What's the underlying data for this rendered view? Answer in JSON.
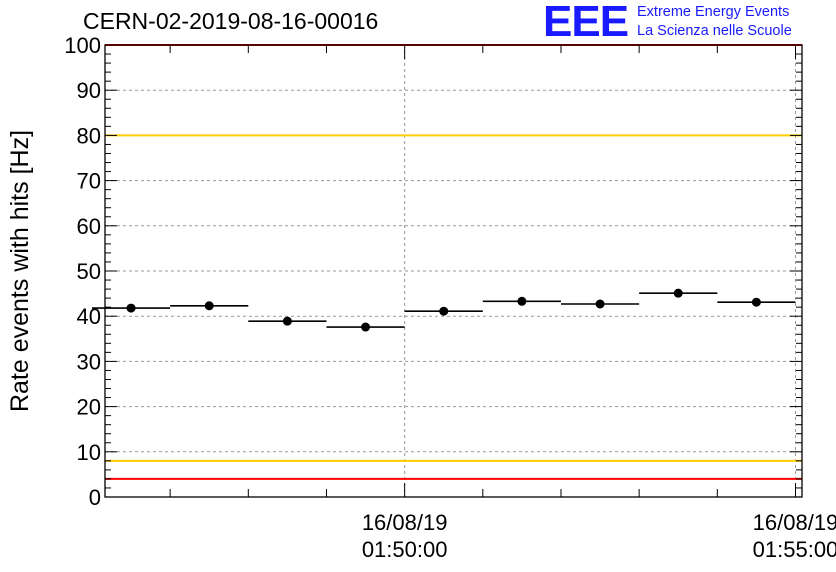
{
  "chart_data": {
    "type": "scatter",
    "title": "CERN-02-2019-08-16-00016",
    "ylabel": "Rate events with hits [Hz]",
    "xlabel": "",
    "ylim": [
      0,
      100
    ],
    "yticks": [
      0,
      10,
      20,
      30,
      40,
      50,
      60,
      70,
      80,
      90,
      100
    ],
    "xlim": [
      "01:46:10",
      "01:55:05"
    ],
    "xticks": [
      {
        "date": "16/08/19",
        "time": "01:50:00"
      },
      {
        "date": "16/08/19",
        "time": "01:55:00"
      }
    ],
    "grid": true,
    "series": [
      {
        "points": [
          {
            "x": "01:46:30",
            "y": 41.8,
            "xerr_s": 30
          },
          {
            "x": "01:47:30",
            "y": 42.3,
            "xerr_s": 30
          },
          {
            "x": "01:48:30",
            "y": 38.9,
            "xerr_s": 30
          },
          {
            "x": "01:49:30",
            "y": 37.6,
            "xerr_s": 30
          },
          {
            "x": "01:50:30",
            "y": 41.1,
            "xerr_s": 30
          },
          {
            "x": "01:51:30",
            "y": 43.3,
            "xerr_s": 30
          },
          {
            "x": "01:52:30",
            "y": 42.7,
            "xerr_s": 30
          },
          {
            "x": "01:53:30",
            "y": 45.1,
            "xerr_s": 30
          },
          {
            "x": "01:54:30",
            "y": 43.1,
            "xerr_s": 30
          }
        ]
      }
    ],
    "reference_lines": [
      {
        "y": 100,
        "color": "#ff0000"
      },
      {
        "y": 80,
        "color": "#ffcc00"
      },
      {
        "y": 8,
        "color": "#ffcc00"
      },
      {
        "y": 4,
        "color": "#ff0000"
      }
    ]
  },
  "logo": {
    "mark": "EEE",
    "line1": "Extreme Energy Events",
    "line2": "La Scienza nelle Scuole"
  }
}
